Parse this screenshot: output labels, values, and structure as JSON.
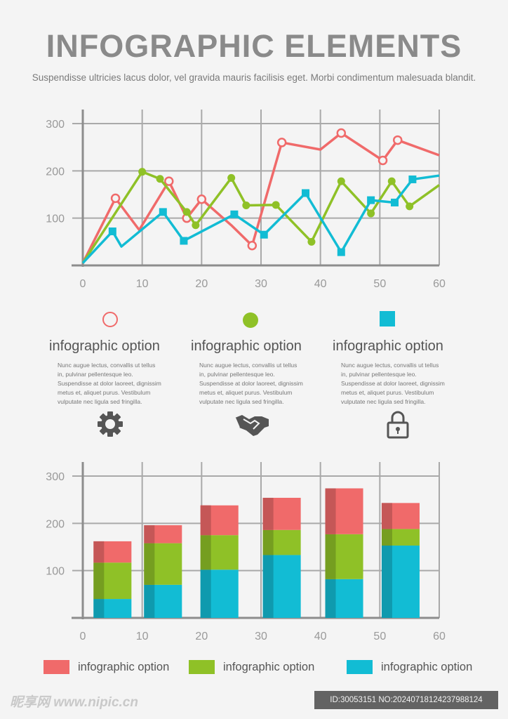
{
  "header": {
    "title": "INFOGRAPHIC ELEMENTS",
    "subtitle": "Suspendisse ultricies lacus dolor, vel gravida mauris facilisis eget.  Morbi condimentum malesuada blandit."
  },
  "colors": {
    "red": "#f06a6a",
    "green": "#8fc127",
    "cyan": "#12bcd4",
    "grid": "#a9a9a9",
    "axis": "#8d8d8d"
  },
  "options": [
    {
      "marker": "open-circle",
      "title": "infographic option",
      "body": "Nunc augue lectus, convallis ut tellus in, pulvinar pellentesque leo.  Suspendisse at dolor laoreet, dignissim metus et, aliquet purus. Vestibulum vulputate nec ligula sed fringilla."
    },
    {
      "marker": "filled-circle",
      "title": "infographic option",
      "body": "Nunc augue lectus, convallis ut tellus in, pulvinar pellentesque leo.  Suspendisse at dolor laoreet, dignissim metus et, aliquet purus. Vestibulum vulputate nec ligula sed fringilla."
    },
    {
      "marker": "filled-square",
      "title": "infographic option",
      "body": "Nunc augue lectus, convallis ut tellus in, pulvinar pellentesque leo.  Suspendisse at dolor laoreet, dignissim metus et, aliquet purus. Vestibulum vulputate nec ligula sed fringilla."
    }
  ],
  "pictograms": [
    "gear-icon",
    "handshake-icon",
    "lock-icon"
  ],
  "legend": [
    "infographic option",
    "infographic option",
    "infographic option"
  ],
  "watermark": {
    "left": "昵享网 www.nipic.cn",
    "right": "ID:30053151 NO:20240718124237988124"
  },
  "chart_data": [
    {
      "type": "line",
      "xlim": [
        0,
        60
      ],
      "ylim": [
        0,
        300
      ],
      "xticks": [
        0,
        10,
        20,
        30,
        40,
        50,
        60
      ],
      "yticks": [
        100,
        200,
        300
      ],
      "grid": true,
      "series": [
        {
          "color": "red",
          "marker": "open-circle",
          "x": [
            0,
            5.5,
            9.5,
            14.5,
            17.5,
            20,
            25,
            28.5,
            33.5,
            40,
            43.5,
            50.5,
            53,
            60
          ],
          "y": [
            5,
            142,
            75,
            178,
            100,
            140,
            85,
            42,
            260,
            245,
            280,
            222,
            265,
            233
          ],
          "markers": [
            false,
            true,
            false,
            true,
            true,
            true,
            false,
            true,
            true,
            false,
            true,
            true,
            true,
            false
          ]
        },
        {
          "color": "green",
          "marker": "filled-circle",
          "x": [
            0,
            10,
            13,
            17.5,
            19,
            25,
            27.5,
            32.5,
            38.5,
            43.5,
            48.5,
            52,
            55,
            60
          ],
          "y": [
            5,
            198,
            183,
            113,
            85,
            185,
            127,
            128,
            50,
            178,
            110,
            178,
            125,
            170
          ],
          "markers": [
            false,
            true,
            true,
            true,
            true,
            true,
            true,
            true,
            true,
            true,
            true,
            true,
            true,
            false
          ]
        },
        {
          "color": "cyan",
          "marker": "filled-square",
          "x": [
            0,
            5,
            6.5,
            13.5,
            17,
            25.5,
            30.5,
            37.5,
            43.5,
            48.5,
            52.5,
            55.5,
            60
          ],
          "y": [
            5,
            72,
            40,
            113,
            52,
            108,
            65,
            153,
            28,
            138,
            133,
            182,
            190
          ],
          "markers": [
            false,
            true,
            false,
            true,
            true,
            true,
            true,
            true,
            true,
            true,
            true,
            true,
            false
          ]
        }
      ]
    },
    {
      "type": "bar",
      "stacked": true,
      "xlim": [
        0,
        60
      ],
      "ylim": [
        0,
        300
      ],
      "xticks": [
        0,
        10,
        20,
        30,
        40,
        50,
        60
      ],
      "yticks": [
        100,
        200,
        300
      ],
      "grid": true,
      "centers": [
        5,
        13.5,
        23,
        33.5,
        44,
        53.5
      ],
      "series": [
        {
          "color": "cyan",
          "values": [
            40,
            70,
            102,
            133,
            82,
            153
          ]
        },
        {
          "color": "green",
          "values": [
            77,
            88,
            73,
            53,
            95,
            35
          ]
        },
        {
          "color": "red",
          "values": [
            45,
            38,
            63,
            68,
            97,
            55
          ]
        }
      ]
    }
  ]
}
